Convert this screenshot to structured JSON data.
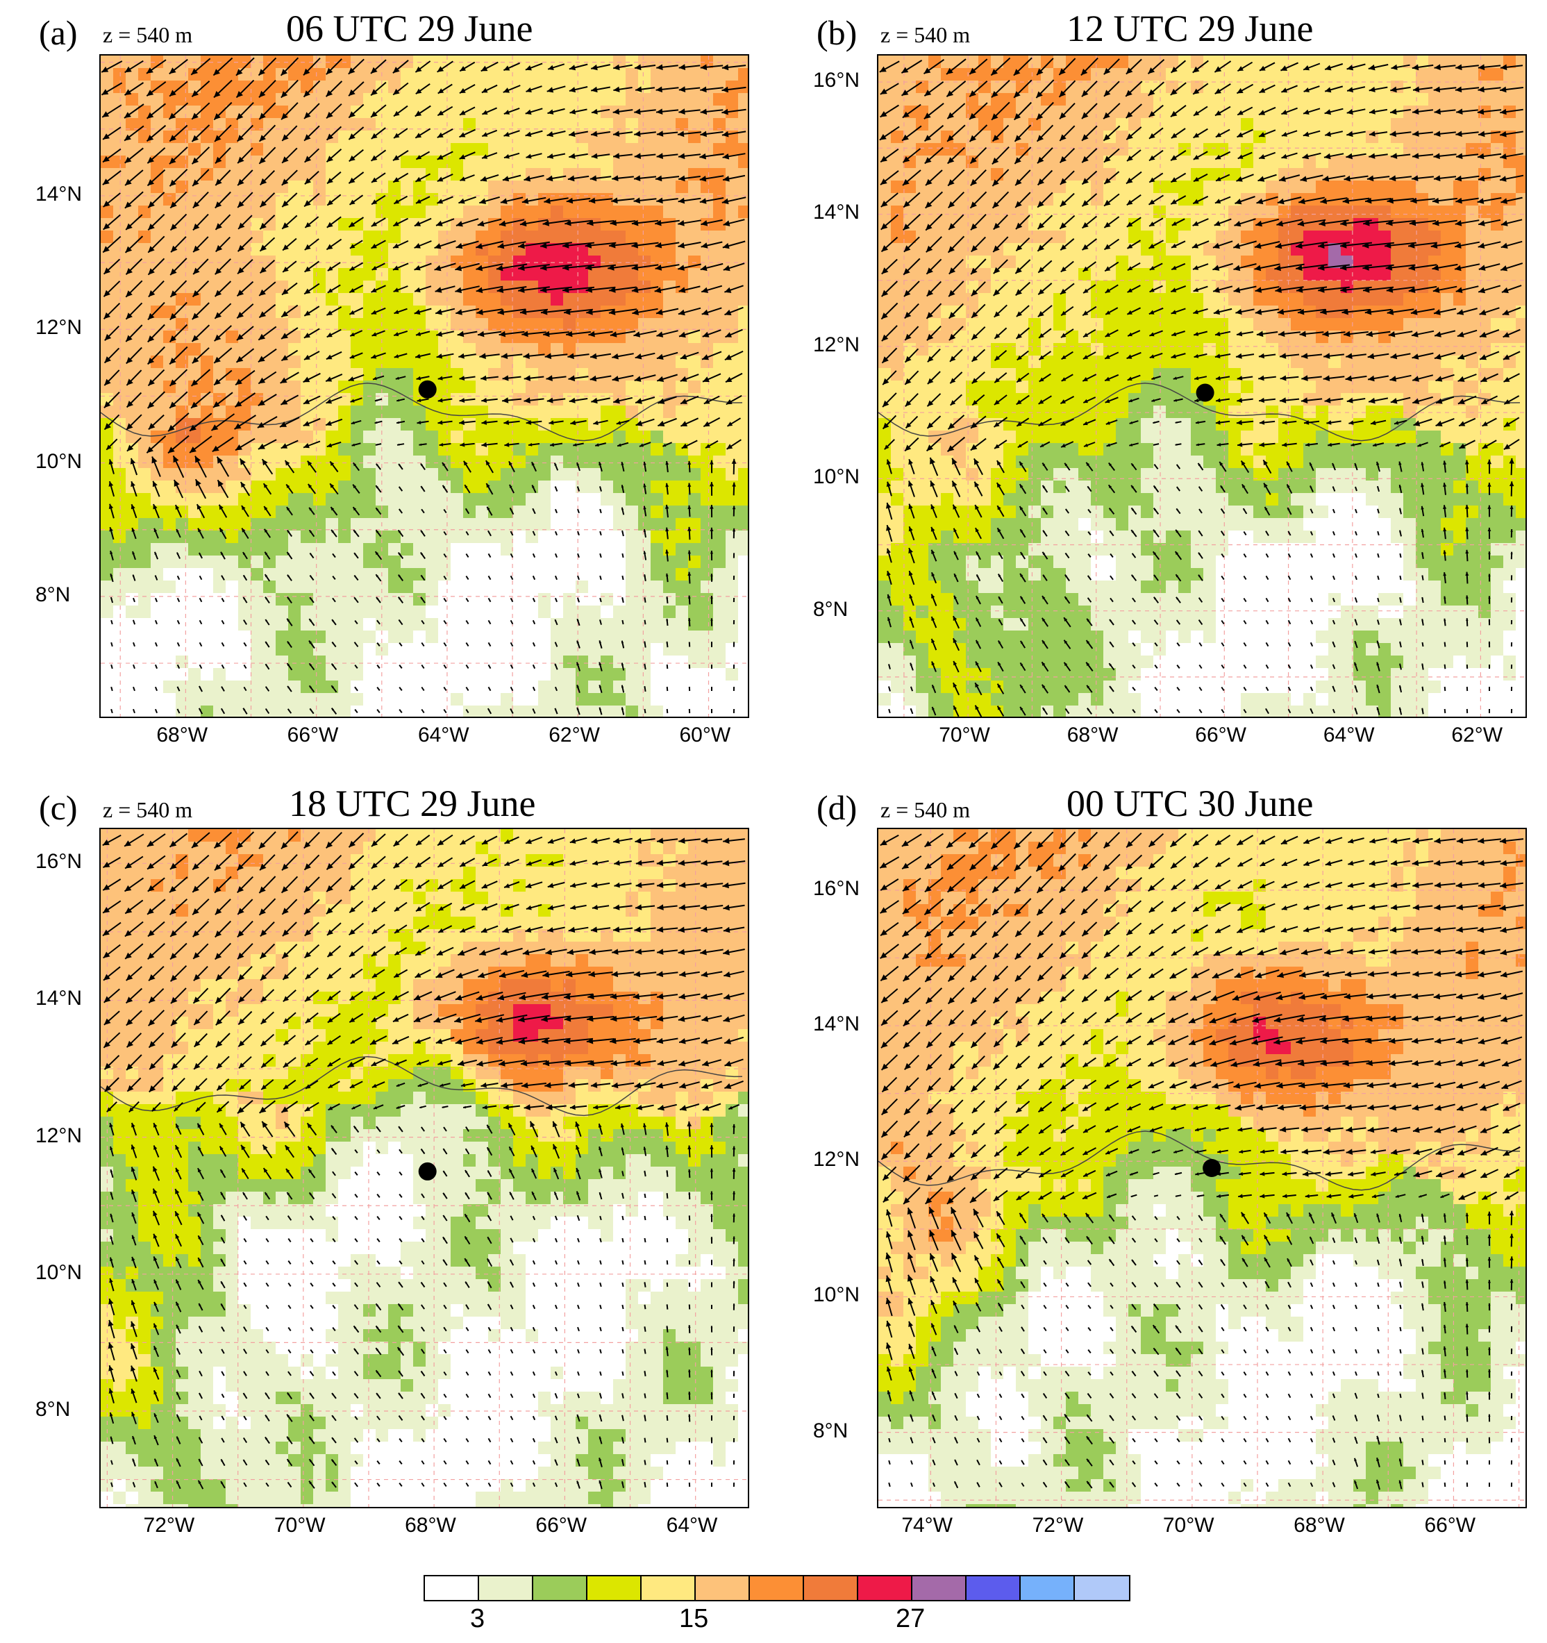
{
  "panels": [
    {
      "id": "a",
      "letter": "(a)",
      "z_label": "z = 540 m",
      "title": "06 UTC 29 June",
      "lat_ticks": [
        {
          "value": 14,
          "label": "14°N"
        },
        {
          "value": 12,
          "label": "12°N"
        },
        {
          "value": 10,
          "label": "10°N"
        },
        {
          "value": 8,
          "label": "8°N"
        }
      ],
      "lon_ticks": [
        {
          "value": -68,
          "label": "68°W"
        },
        {
          "value": -66,
          "label": "66°W"
        },
        {
          "value": -64,
          "label": "64°W"
        },
        {
          "value": -62,
          "label": "62°W"
        },
        {
          "value": -60,
          "label": "60°W"
        }
      ],
      "lon_range": [
        -69.3,
        -59.4
      ],
      "lat_range": [
        6.2,
        16.1
      ],
      "marker": {
        "lon": -64.3,
        "lat": 11.1
      }
    },
    {
      "id": "b",
      "letter": "(b)",
      "z_label": "z = 540 m",
      "title": "12 UTC 29 June",
      "lat_ticks": [
        {
          "value": 16,
          "label": "16°N"
        },
        {
          "value": 14,
          "label": "14°N"
        },
        {
          "value": 12,
          "label": "12°N"
        },
        {
          "value": 10,
          "label": "10°N"
        },
        {
          "value": 8,
          "label": "8°N"
        }
      ],
      "lon_ticks": [
        {
          "value": -70,
          "label": "70°W"
        },
        {
          "value": -68,
          "label": "68°W"
        },
        {
          "value": -66,
          "label": "66°W"
        },
        {
          "value": -64,
          "label": "64°W"
        },
        {
          "value": -62,
          "label": "62°W"
        }
      ],
      "lon_range": [
        -71.4,
        -61.3
      ],
      "lat_range": [
        6.4,
        16.4
      ],
      "marker": {
        "lon": -66.3,
        "lat": 11.3
      }
    },
    {
      "id": "c",
      "letter": "(c)",
      "z_label": "z = 540 m",
      "title": "18 UTC 29 June",
      "lat_ticks": [
        {
          "value": 16,
          "label": "16°N"
        },
        {
          "value": 14,
          "label": "14°N"
        },
        {
          "value": 12,
          "label": "12°N"
        },
        {
          "value": 10,
          "label": "10°N"
        },
        {
          "value": 8,
          "label": "8°N"
        }
      ],
      "lon_ticks": [
        {
          "value": -72,
          "label": "72°W"
        },
        {
          "value": -70,
          "label": "70°W"
        },
        {
          "value": -68,
          "label": "68°W"
        },
        {
          "value": -66,
          "label": "66°W"
        },
        {
          "value": -64,
          "label": "64°W"
        }
      ],
      "lon_range": [
        -73.1,
        -63.2
      ],
      "lat_range": [
        6.6,
        16.5
      ],
      "marker": {
        "lon": -68.1,
        "lat": 11.5
      }
    },
    {
      "id": "d",
      "letter": "(d)",
      "z_label": "z = 540 m",
      "title": "00 UTC 30 June",
      "lat_ticks": [
        {
          "value": 16,
          "label": "16°N"
        },
        {
          "value": 14,
          "label": "14°N"
        },
        {
          "value": 12,
          "label": "12°N"
        },
        {
          "value": 10,
          "label": "10°N"
        },
        {
          "value": 8,
          "label": "8°N"
        }
      ],
      "lon_ticks": [
        {
          "value": -74,
          "label": "74°W"
        },
        {
          "value": -72,
          "label": "72°W"
        },
        {
          "value": -70,
          "label": "70°W"
        },
        {
          "value": -68,
          "label": "68°W"
        },
        {
          "value": -66,
          "label": "66°W"
        }
      ],
      "lon_range": [
        -74.8,
        -64.9
      ],
      "lat_range": [
        6.9,
        16.9
      ],
      "marker": {
        "lon": -69.7,
        "lat": 11.9
      }
    }
  ],
  "colorbar": {
    "colors": [
      "#ffffff",
      "#eaf2cc",
      "#9bcc5a",
      "#dce600",
      "#ffe980",
      "#fdc27a",
      "#fc8f35",
      "#f07b3a",
      "#ee1a48",
      "#a46aa9",
      "#5c5ced",
      "#76b1fb",
      "#b0c9f9"
    ],
    "labels": [
      {
        "value": 3,
        "index": 1
      },
      {
        "value": 15,
        "index": 5
      },
      {
        "value": 27,
        "index": 9
      }
    ]
  }
}
